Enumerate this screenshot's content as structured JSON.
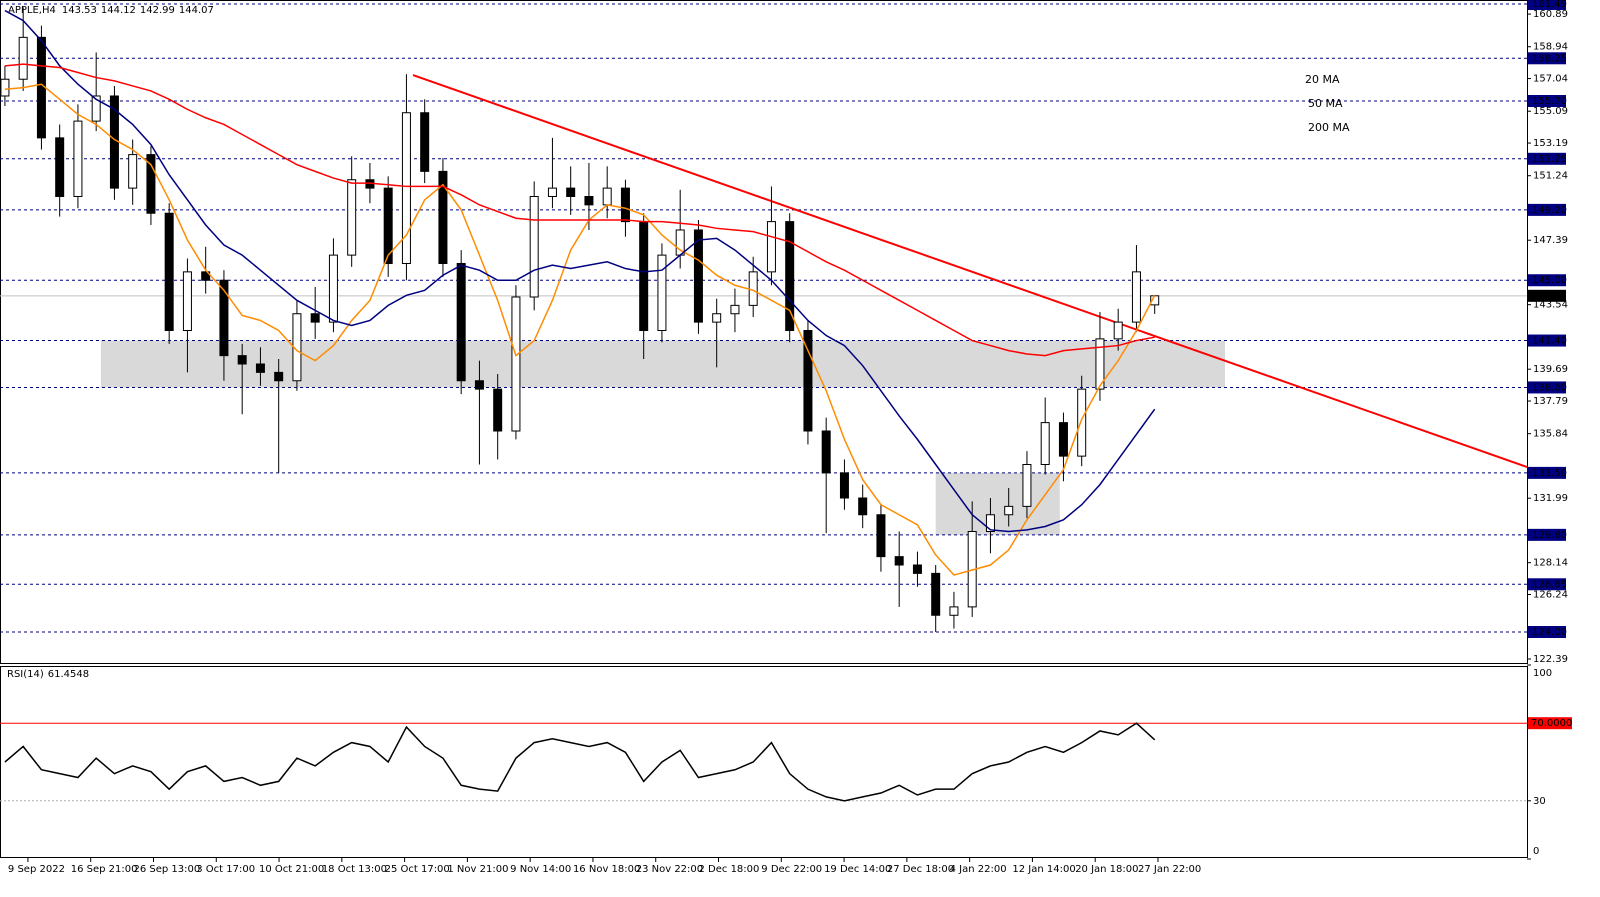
{
  "chart_data": [
    {
      "type": "candlestick",
      "title": "APPLE,H4",
      "open": [
        156.0,
        157.0,
        159.5,
        153.5,
        150.0,
        154.5,
        156.0,
        150.5,
        152.5,
        149.0,
        142.0,
        145.5,
        145.0,
        140.5,
        140.0,
        139.5,
        139.0,
        143.0,
        142.5,
        146.5,
        151.0,
        150.5,
        146.0,
        155.0,
        151.5,
        146.0,
        139.0,
        138.5,
        136.0,
        144.0,
        150.0,
        150.5,
        150.0,
        149.5,
        150.5,
        148.5,
        142.0,
        146.5,
        148.0,
        142.5,
        143.0,
        143.5,
        145.5,
        148.5,
        142.0,
        136.0,
        133.5,
        132.0,
        131.0,
        128.5,
        128.0,
        127.5,
        125.0,
        125.5,
        130.0,
        131.0,
        131.5,
        134.0,
        136.5,
        134.5,
        138.5,
        141.5,
        142.5,
        143.53
      ],
      "high": [
        157.8,
        161.3,
        160.2,
        154.3,
        155.5,
        158.6,
        156.6,
        153.4,
        153.0,
        149.6,
        146.3,
        147.0,
        145.6,
        141.2,
        141.0,
        140.3,
        143.8,
        144.6,
        147.5,
        152.4,
        152.0,
        151.2,
        157.3,
        155.8,
        152.3,
        146.8,
        140.2,
        139.4,
        144.7,
        150.9,
        153.5,
        151.8,
        152.0,
        151.8,
        151.0,
        149.0,
        147.2,
        150.4,
        148.6,
        143.9,
        144.5,
        146.4,
        150.6,
        149.0,
        142.6,
        136.8,
        134.3,
        132.8,
        131.6,
        130.0,
        128.8,
        128.0,
        126.4,
        131.8,
        132.0,
        132.6,
        134.8,
        138.0,
        137.1,
        139.3,
        143.1,
        143.3,
        147.1,
        144.12
      ],
      "low": [
        155.4,
        156.3,
        152.8,
        148.8,
        149.3,
        153.9,
        149.8,
        149.5,
        148.3,
        141.2,
        139.5,
        144.2,
        139.0,
        137.0,
        138.7,
        133.5,
        138.4,
        141.5,
        141.9,
        145.8,
        149.6,
        145.2,
        145.0,
        150.8,
        145.2,
        138.2,
        134.0,
        134.3,
        135.5,
        143.2,
        149.3,
        148.9,
        148.0,
        148.7,
        147.6,
        140.3,
        141.3,
        145.7,
        141.8,
        139.8,
        141.9,
        142.8,
        144.7,
        141.3,
        135.2,
        129.9,
        131.3,
        130.2,
        127.6,
        125.5,
        126.7,
        124.0,
        124.2,
        124.9,
        128.7,
        130.3,
        130.8,
        133.4,
        133.0,
        133.9,
        137.8,
        140.8,
        141.9,
        142.99
      ],
      "close": [
        157.0,
        159.5,
        153.5,
        150.0,
        154.5,
        156.0,
        150.5,
        152.5,
        149.0,
        142.0,
        145.5,
        145.0,
        140.5,
        140.0,
        139.5,
        139.0,
        143.0,
        142.5,
        146.5,
        151.0,
        150.5,
        146.0,
        155.0,
        151.5,
        146.0,
        139.0,
        138.5,
        136.0,
        144.0,
        150.0,
        150.5,
        150.0,
        149.5,
        150.5,
        148.5,
        142.0,
        146.5,
        148.0,
        142.5,
        143.0,
        143.5,
        145.5,
        148.5,
        142.0,
        136.0,
        133.5,
        132.0,
        131.0,
        128.5,
        128.0,
        127.5,
        125.0,
        125.5,
        130.0,
        131.0,
        131.5,
        134.0,
        136.5,
        134.5,
        138.5,
        141.5,
        142.5,
        145.5,
        144.07
      ],
      "up_color": "#ffffff",
      "down_color": "#000000",
      "moving_averages": [
        {
          "name": "20 MA",
          "color": "#ff8c00",
          "values": [
            156.4,
            156.5,
            156.7,
            155.8,
            154.9,
            154.3,
            153.4,
            152.8,
            151.9,
            149.8,
            147.4,
            145.6,
            144.4,
            142.9,
            142.6,
            142.0,
            140.8,
            140.2,
            141.1,
            142.6,
            143.8,
            146.5,
            147.7,
            149.8,
            150.7,
            149.2,
            146.5,
            143.8,
            140.5,
            141.4,
            143.8,
            146.8,
            148.6,
            149.5,
            149.3,
            148.9,
            147.7,
            146.8,
            146.2,
            145.3,
            144.7,
            144.4,
            143.8,
            143.2,
            140.8,
            138.4,
            135.5,
            133.1,
            131.6,
            131.0,
            130.4,
            128.6,
            127.4,
            127.7,
            128.0,
            128.9,
            130.7,
            132.2,
            133.7,
            136.7,
            138.7,
            140.2,
            142.0,
            144.1
          ]
        },
        {
          "name": "50 MA",
          "color": "#000080",
          "values": [
            161.1,
            160.5,
            159.3,
            157.8,
            156.7,
            155.8,
            155.2,
            154.3,
            153.1,
            151.3,
            149.8,
            148.3,
            147.1,
            146.5,
            145.6,
            144.7,
            143.8,
            143.2,
            142.6,
            142.3,
            142.6,
            143.5,
            144.1,
            144.4,
            145.3,
            145.9,
            145.6,
            145.0,
            145.0,
            145.6,
            145.9,
            145.7,
            145.9,
            146.1,
            145.7,
            145.5,
            145.6,
            146.5,
            147.4,
            147.5,
            146.8,
            145.9,
            145.0,
            143.8,
            142.6,
            141.7,
            141.1,
            139.9,
            138.4,
            136.9,
            135.5,
            134.0,
            132.5,
            131.0,
            130.1,
            130.0,
            130.1,
            130.3,
            130.7,
            131.6,
            132.8,
            134.3,
            135.8,
            137.3
          ]
        },
        {
          "name": "200 MA",
          "color": "#ff0000",
          "values": [
            157.8,
            157.9,
            157.8,
            157.7,
            157.4,
            157.1,
            156.9,
            156.6,
            156.3,
            155.8,
            155.2,
            154.7,
            154.3,
            153.7,
            153.1,
            152.5,
            151.9,
            151.5,
            151.1,
            150.8,
            150.8,
            150.7,
            150.6,
            150.6,
            150.6,
            150.1,
            149.5,
            149.1,
            148.7,
            148.6,
            148.6,
            148.6,
            148.6,
            148.6,
            148.6,
            148.5,
            148.5,
            148.4,
            148.3,
            148.1,
            148.0,
            147.9,
            147.6,
            147.3,
            146.7,
            146.1,
            145.6,
            145.0,
            144.4,
            143.8,
            143.2,
            142.6,
            142.0,
            141.4,
            141.1,
            140.8,
            140.6,
            140.5,
            140.8,
            140.9,
            141.0,
            141.1,
            141.4,
            141.6
          ]
        }
      ],
      "levels": [
        161.49,
        158.25,
        {
          "value": 155.7,
          "label": "155.70"
        },
        152.25,
        {
          "value": 149.2,
          "label": "149.20"
        },
        {
          "value": 145,
          "label": "145.00"
        },
        {
          "value": 141.4,
          "label": "141.40"
        },
        {
          "value": 138.6,
          "label": "138.60"
        },
        {
          "value": 133.5,
          "label": "133.50"
        },
        {
          "value": 129.8,
          "label": "129.80"
        },
        126.85,
        {
          "value": 124,
          "label": "124.00"
        }
      ],
      "level_color": "#000080",
      "trendline": {
        "x": [
          22.36,
          83.4
        ],
        "y": [
          157.25,
          133.85
        ],
        "color": "#ff0000"
      },
      "zones": [
        {
          "x": [
            5.26,
            66.85
          ],
          "y": [
            141.4,
            138.6
          ]
        },
        {
          "x": [
            51.0,
            57.8
          ],
          "y": [
            133.5,
            129.8
          ]
        }
      ],
      "zone_color": "#d9d9d9",
      "xlim": [
        -0.27,
        83.4
      ],
      "ylim": [
        122.15,
        161.73
      ],
      "yticks": [
        160.89,
        158.94,
        157.04,
        155.09,
        153.19,
        151.24,
        147.39,
        143.54,
        139.69,
        137.79,
        135.84,
        131.99,
        128.14,
        126.24,
        122.39
      ],
      "xticks": [
        {
          "value": 1.26,
          "label": "9 Sep 2022"
        },
        {
          "value": 4.7,
          "label": "16 Sep 21:00"
        },
        {
          "value": 8.14,
          "label": "26 Sep 13:00"
        },
        {
          "value": 11.58,
          "label": "3 Oct 17:00"
        },
        {
          "value": 15.02,
          "label": "10 Oct 21:00"
        },
        {
          "value": 18.46,
          "label": "18 Oct 13:00"
        },
        {
          "value": 21.9,
          "label": "25 Oct 17:00"
        },
        {
          "value": 25.34,
          "label": "1 Nov 21:00"
        },
        {
          "value": 28.78,
          "label": "9 Nov 14:00"
        },
        {
          "value": 32.22,
          "label": "16 Nov 18:00"
        },
        {
          "value": 35.66,
          "label": "23 Nov 22:00"
        },
        {
          "value": 39.1,
          "label": "2 Dec 18:00"
        },
        {
          "value": 42.54,
          "label": "9 Dec 22:00"
        },
        {
          "value": 45.98,
          "label": "19 Dec 14:00"
        },
        {
          "value": 49.42,
          "label": "27 Dec 18:00"
        },
        {
          "value": 52.86,
          "label": "4 Jan 22:00"
        },
        {
          "value": 56.3,
          "label": "12 Jan 14:00"
        },
        {
          "value": 59.74,
          "label": "20 Jan 18:00"
        },
        {
          "value": 63.18,
          "label": "27 Jan 22:00"
        }
      ]
    },
    {
      "type": "line",
      "title": "RSI(14)",
      "color": "#000000",
      "values": [
        50,
        58,
        46,
        44,
        42,
        52,
        44,
        48,
        45,
        36,
        45,
        48,
        40,
        42,
        38,
        40,
        52,
        48,
        55,
        60,
        58,
        50,
        68,
        58,
        52,
        38,
        36,
        35,
        52,
        60,
        62,
        60,
        58,
        60,
        55,
        40,
        50,
        56,
        42,
        44,
        46,
        50,
        60,
        44,
        36,
        32,
        30,
        32,
        34,
        38,
        33,
        36,
        36,
        44,
        48,
        50,
        55,
        58,
        55,
        60,
        66,
        64,
        70,
        61.4548
      ],
      "ylim": [
        0,
        100
      ],
      "yticks": [
        0,
        30,
        100
      ],
      "levels": [
        {
          "value": 70,
          "label": "70.0000"
        }
      ],
      "level_color": "#ff0000"
    }
  ]
}
